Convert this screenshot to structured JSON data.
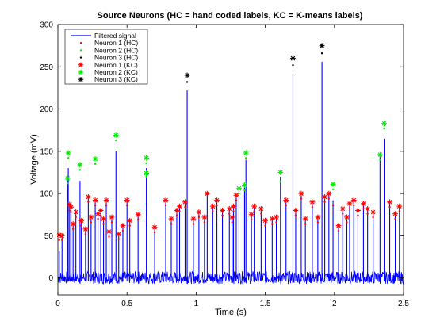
{
  "chart_data": {
    "type": "line",
    "title": "Source Neurons (HC = hand coded labels, KC = K-means labels)",
    "xlabel": "Time (s)",
    "ylabel": "Voltage (mV)",
    "xlim": [
      0,
      2.5
    ],
    "ylim": [
      -20,
      300
    ],
    "xticks": [
      0,
      0.5,
      1,
      1.5,
      2,
      2.5
    ],
    "xtick_labels": [
      "0",
      "0.5",
      "1",
      "1.5",
      "2",
      "2.5"
    ],
    "yticks": [
      0,
      50,
      100,
      150,
      200,
      250,
      300
    ],
    "ytick_labels": [
      "0",
      "50",
      "100",
      "150",
      "200",
      "250",
      "300"
    ],
    "grid": false,
    "legend_position": "top-left",
    "colors": {
      "signal": "#0000ff",
      "neuron1": "#ff0000",
      "neuron2": "#00ee00",
      "neuron3": "#000000"
    },
    "noise_band_mv": [
      -7,
      8
    ],
    "series": [
      {
        "name": "Filtered signal",
        "style": "line",
        "color": "#0000ff",
        "spikes": [
          [
            0.01,
            32
          ],
          [
            0.03,
            52
          ],
          [
            0.07,
            118
          ],
          [
            0.075,
            130
          ],
          [
            0.085,
            86
          ],
          [
            0.095,
            84
          ],
          [
            0.11,
            64
          ],
          [
            0.13,
            78
          ],
          [
            0.16,
            115
          ],
          [
            0.17,
            68
          ],
          [
            0.2,
            58
          ],
          [
            0.22,
            96
          ],
          [
            0.24,
            72
          ],
          [
            0.27,
            92
          ],
          [
            0.29,
            76
          ],
          [
            0.31,
            80
          ],
          [
            0.33,
            70
          ],
          [
            0.35,
            92
          ],
          [
            0.37,
            55
          ],
          [
            0.39,
            72
          ],
          [
            0.42,
            150
          ],
          [
            0.44,
            52
          ],
          [
            0.47,
            62
          ],
          [
            0.5,
            92
          ],
          [
            0.52,
            68
          ],
          [
            0.58,
            75
          ],
          [
            0.64,
            130
          ],
          [
            0.7,
            60
          ],
          [
            0.78,
            92
          ],
          [
            0.82,
            70
          ],
          [
            0.86,
            80
          ],
          [
            0.88,
            85
          ],
          [
            0.92,
            90
          ],
          [
            0.935,
            222
          ],
          [
            0.98,
            70
          ],
          [
            1.02,
            78
          ],
          [
            1.06,
            72
          ],
          [
            1.08,
            100
          ],
          [
            1.12,
            85
          ],
          [
            1.15,
            92
          ],
          [
            1.19,
            80
          ],
          [
            1.24,
            82
          ],
          [
            1.26,
            72
          ],
          [
            1.27,
            85
          ],
          [
            1.29,
            98
          ],
          [
            1.31,
            106
          ],
          [
            1.35,
            110
          ],
          [
            1.36,
            140
          ],
          [
            1.4,
            75
          ],
          [
            1.42,
            85
          ],
          [
            1.47,
            82
          ],
          [
            1.5,
            68
          ],
          [
            1.55,
            70
          ],
          [
            1.58,
            72
          ],
          [
            1.61,
            120
          ],
          [
            1.65,
            92
          ],
          [
            1.7,
            242
          ],
          [
            1.72,
            80
          ],
          [
            1.76,
            100
          ],
          [
            1.79,
            70
          ],
          [
            1.84,
            90
          ],
          [
            1.88,
            72
          ],
          [
            1.91,
            256
          ],
          [
            1.93,
            96
          ],
          [
            1.96,
            100
          ],
          [
            1.99,
            92
          ],
          [
            2.03,
            62
          ],
          [
            2.06,
            82
          ],
          [
            2.09,
            72
          ],
          [
            2.11,
            88
          ],
          [
            2.14,
            92
          ],
          [
            2.17,
            80
          ],
          [
            2.21,
            88
          ],
          [
            2.24,
            82
          ],
          [
            2.28,
            78
          ],
          [
            2.33,
            146
          ],
          [
            2.36,
            165
          ],
          [
            2.4,
            90
          ],
          [
            2.44,
            76
          ],
          [
            2.47,
            85
          ]
        ]
      },
      {
        "name": "Neuron 1 (HC)",
        "style": "dot",
        "color": "#ff0000",
        "points": [
          [
            0.01,
            45
          ],
          [
            0.03,
            45
          ],
          [
            0.085,
            80
          ],
          [
            0.095,
            78
          ],
          [
            0.11,
            58
          ],
          [
            0.13,
            72
          ],
          [
            0.17,
            62
          ],
          [
            0.2,
            52
          ],
          [
            0.22,
            90
          ],
          [
            0.24,
            66
          ],
          [
            0.27,
            86
          ],
          [
            0.29,
            70
          ],
          [
            0.31,
            74
          ],
          [
            0.33,
            64
          ],
          [
            0.35,
            86
          ],
          [
            0.37,
            49
          ],
          [
            0.39,
            66
          ],
          [
            0.44,
            46
          ],
          [
            0.47,
            56
          ],
          [
            0.5,
            86
          ],
          [
            0.52,
            62
          ],
          [
            0.58,
            69
          ],
          [
            0.7,
            54
          ],
          [
            0.78,
            86
          ],
          [
            0.82,
            64
          ],
          [
            0.86,
            74
          ],
          [
            0.88,
            79
          ],
          [
            0.92,
            84
          ],
          [
            0.98,
            64
          ],
          [
            1.02,
            72
          ],
          [
            1.06,
            66
          ],
          [
            1.12,
            79
          ],
          [
            1.15,
            86
          ],
          [
            1.19,
            74
          ],
          [
            1.24,
            76
          ],
          [
            1.26,
            66
          ],
          [
            1.27,
            79
          ],
          [
            1.29,
            92
          ],
          [
            1.4,
            69
          ],
          [
            1.42,
            79
          ],
          [
            1.47,
            76
          ],
          [
            1.5,
            62
          ],
          [
            1.55,
            64
          ],
          [
            1.58,
            66
          ],
          [
            1.65,
            86
          ],
          [
            1.72,
            74
          ],
          [
            1.76,
            94
          ],
          [
            1.79,
            64
          ],
          [
            1.84,
            84
          ],
          [
            1.88,
            66
          ],
          [
            1.93,
            90
          ],
          [
            1.96,
            94
          ],
          [
            1.99,
            86
          ],
          [
            2.03,
            56
          ],
          [
            2.06,
            76
          ],
          [
            2.09,
            66
          ],
          [
            2.11,
            82
          ],
          [
            2.14,
            86
          ],
          [
            2.17,
            74
          ],
          [
            2.21,
            82
          ],
          [
            2.24,
            76
          ],
          [
            2.28,
            72
          ],
          [
            2.4,
            84
          ],
          [
            2.44,
            70
          ],
          [
            2.47,
            79
          ]
        ]
      },
      {
        "name": "Neuron 2 (HC)",
        "style": "dot",
        "color": "#00ee00",
        "points": [
          [
            0.07,
            112
          ],
          [
            0.075,
            142
          ],
          [
            0.16,
            128
          ],
          [
            0.27,
            135
          ],
          [
            0.42,
            163
          ],
          [
            0.64,
            136
          ],
          [
            0.64,
            120
          ],
          [
            1.31,
            100
          ],
          [
            1.35,
            104
          ],
          [
            1.36,
            142
          ],
          [
            1.61,
            114
          ],
          [
            1.99,
            105
          ],
          [
            2.33,
            140
          ],
          [
            2.36,
            177
          ]
        ]
      },
      {
        "name": "Neuron 3 (HC)",
        "style": "dot",
        "color": "#000000",
        "points": [
          [
            0.935,
            232
          ],
          [
            1.7,
            252
          ],
          [
            1.91,
            266
          ]
        ]
      },
      {
        "name": "Neuron 1 (KC)",
        "style": "star",
        "color": "#ff0000",
        "points": [
          [
            0.01,
            51
          ],
          [
            0.03,
            50
          ],
          [
            0.085,
            87
          ],
          [
            0.095,
            84
          ],
          [
            0.11,
            64
          ],
          [
            0.13,
            78
          ],
          [
            0.17,
            68
          ],
          [
            0.2,
            58
          ],
          [
            0.22,
            96
          ],
          [
            0.24,
            72
          ],
          [
            0.27,
            92
          ],
          [
            0.29,
            76
          ],
          [
            0.31,
            80
          ],
          [
            0.33,
            70
          ],
          [
            0.35,
            92
          ],
          [
            0.37,
            55
          ],
          [
            0.39,
            72
          ],
          [
            0.44,
            52
          ],
          [
            0.47,
            62
          ],
          [
            0.5,
            92
          ],
          [
            0.52,
            68
          ],
          [
            0.58,
            75
          ],
          [
            0.7,
            60
          ],
          [
            0.78,
            92
          ],
          [
            0.82,
            70
          ],
          [
            0.86,
            80
          ],
          [
            0.88,
            85
          ],
          [
            0.92,
            90
          ],
          [
            0.98,
            70
          ],
          [
            1.02,
            78
          ],
          [
            1.06,
            72
          ],
          [
            1.08,
            100
          ],
          [
            1.12,
            85
          ],
          [
            1.15,
            92
          ],
          [
            1.19,
            80
          ],
          [
            1.24,
            82
          ],
          [
            1.26,
            72
          ],
          [
            1.27,
            85
          ],
          [
            1.29,
            98
          ],
          [
            1.4,
            75
          ],
          [
            1.42,
            85
          ],
          [
            1.47,
            82
          ],
          [
            1.5,
            68
          ],
          [
            1.55,
            70
          ],
          [
            1.58,
            72
          ],
          [
            1.65,
            92
          ],
          [
            1.72,
            80
          ],
          [
            1.76,
            100
          ],
          [
            1.79,
            70
          ],
          [
            1.84,
            90
          ],
          [
            1.88,
            72
          ],
          [
            1.93,
            96
          ],
          [
            1.96,
            100
          ],
          [
            2.03,
            62
          ],
          [
            2.06,
            82
          ],
          [
            2.09,
            72
          ],
          [
            2.11,
            88
          ],
          [
            2.14,
            92
          ],
          [
            2.17,
            80
          ],
          [
            2.21,
            88
          ],
          [
            2.24,
            82
          ],
          [
            2.28,
            78
          ],
          [
            2.4,
            90
          ],
          [
            2.44,
            76
          ],
          [
            2.47,
            85
          ]
        ]
      },
      {
        "name": "Neuron 2 (KC)",
        "style": "star",
        "color": "#00ee00",
        "points": [
          [
            0.07,
            118
          ],
          [
            0.075,
            148
          ],
          [
            0.16,
            134
          ],
          [
            0.27,
            141
          ],
          [
            0.42,
            169
          ],
          [
            0.64,
            142
          ],
          [
            0.64,
            124
          ],
          [
            1.31,
            106
          ],
          [
            1.35,
            110
          ],
          [
            1.36,
            148
          ],
          [
            1.61,
            125
          ],
          [
            1.99,
            111
          ],
          [
            2.33,
            146
          ],
          [
            2.36,
            183
          ]
        ]
      },
      {
        "name": "Neuron 3 (KC)",
        "style": "star",
        "color": "#000000",
        "points": [
          [
            0.935,
            240
          ],
          [
            1.7,
            260
          ],
          [
            1.91,
            275
          ]
        ]
      }
    ]
  }
}
